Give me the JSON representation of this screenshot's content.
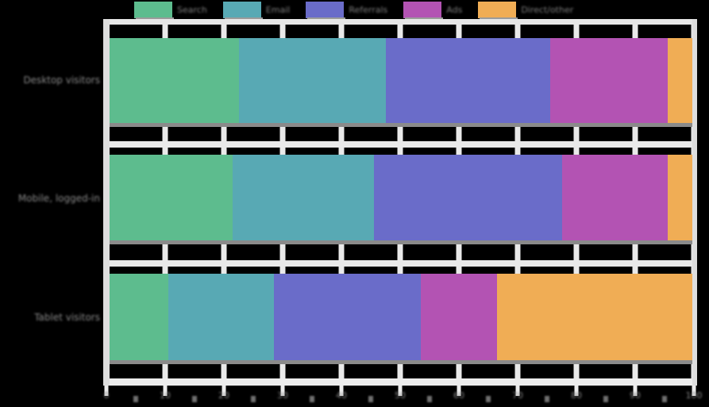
{
  "chart_data": {
    "type": "bar",
    "orientation": "horizontal",
    "stacked": true,
    "stack_unit": "percent",
    "categories": [
      "Desktop visitors",
      "Mobile, logged-in",
      "Tablet visitors"
    ],
    "series": [
      {
        "name": "Search",
        "color": "#5dbc8e",
        "values": [
          22,
          21,
          10
        ]
      },
      {
        "name": "Email",
        "color": "#58a9b4",
        "values": [
          25,
          24,
          18
        ]
      },
      {
        "name": "Referrals",
        "color": "#6a6cc9",
        "values": [
          28,
          32,
          25
        ]
      },
      {
        "name": "Ads",
        "color": "#b353b3",
        "values": [
          20,
          18,
          13
        ]
      },
      {
        "name": "Direct/other",
        "color": "#f0ad55",
        "values": [
          5,
          5,
          34
        ]
      }
    ],
    "xlim": [
      0,
      100
    ],
    "x_ticks": [
      "0",
      "10",
      "20",
      "30",
      "40",
      "50",
      "60",
      "70",
      "80",
      "90",
      "100"
    ],
    "x_minor_tick_step": 5,
    "legend_position": "top",
    "grid": "vertical"
  },
  "colors": {
    "page_background": "#000000",
    "gridline": "#e9e9e9",
    "spine": "#e2e2e2",
    "tick_label": "#858585",
    "category_label": "#8a8a8a",
    "legend_label": "#7d7d7d",
    "swatch_shadow": "#9b9b9b",
    "bar_shadow": "#8a8a8a"
  }
}
